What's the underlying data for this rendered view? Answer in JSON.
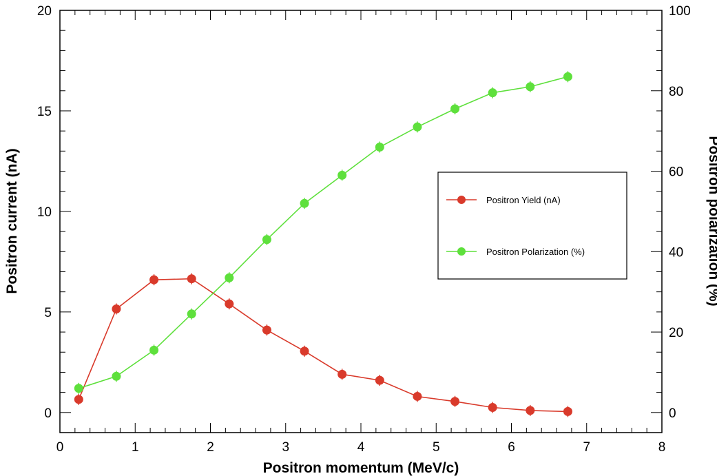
{
  "chart_data": {
    "type": "line",
    "title": "",
    "xlabel": "Positron momentum (MeV/c)",
    "ylabel": "Positron current (nA)",
    "y2label": "Positron polarization (%)",
    "xlim": [
      0,
      8
    ],
    "ylim": [
      -1,
      20
    ],
    "y2lim": [
      -5,
      100
    ],
    "x_ticks": [
      0,
      1,
      2,
      3,
      4,
      5,
      6,
      7,
      8
    ],
    "y_ticks": [
      0,
      5,
      10,
      15,
      20
    ],
    "y2_ticks": [
      0,
      20,
      40,
      60,
      80,
      100
    ],
    "grid": false,
    "legend_position": "right-center",
    "series": [
      {
        "name": "Positron Yield (nA)",
        "axis": "left",
        "color": "#d93a2b",
        "x": [
          0.25,
          0.75,
          1.25,
          1.75,
          2.25,
          2.75,
          3.25,
          3.75,
          4.25,
          4.75,
          5.25,
          5.75,
          6.25,
          6.75
        ],
        "y": [
          0.65,
          5.15,
          6.6,
          6.65,
          5.4,
          4.1,
          3.05,
          1.9,
          1.6,
          0.8,
          0.55,
          0.25,
          0.1,
          0.05
        ]
      },
      {
        "name": "Positron Polarization (%)",
        "axis": "right",
        "color": "#5ee03c",
        "x": [
          0.25,
          0.75,
          1.25,
          1.75,
          2.25,
          2.75,
          3.25,
          3.75,
          4.25,
          4.75,
          5.25,
          5.75,
          6.25,
          6.75
        ],
        "y": [
          6,
          9,
          15.5,
          24.5,
          33.5,
          43,
          52,
          59,
          66,
          71,
          75.5,
          79.5,
          81,
          83.5
        ]
      }
    ]
  }
}
